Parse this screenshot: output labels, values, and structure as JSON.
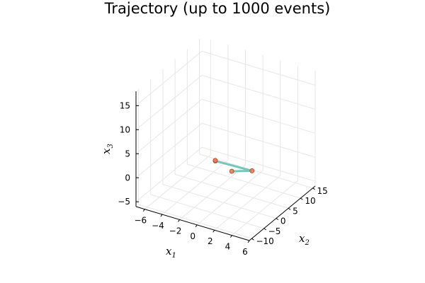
{
  "chart_data": {
    "type": "line3d",
    "title": "Trajectory (up to 1000 events)",
    "xlabel": "x",
    "xlabel_sub": "1",
    "ylabel": "x",
    "ylabel_sub": "2",
    "zlabel": "x",
    "zlabel_sub": "3",
    "xlim": [
      -7,
      6
    ],
    "ylim": [
      -11,
      16
    ],
    "zlim": [
      -6,
      18
    ],
    "xticks": [
      -6,
      -4,
      -2,
      0,
      2,
      4,
      6
    ],
    "yticks": [
      -10,
      -5,
      0,
      5,
      10,
      15
    ],
    "zticks": [
      -5,
      0,
      5,
      10,
      15
    ],
    "grid": true,
    "legend": "none",
    "series": [
      {
        "line_color": "#76c7b8",
        "marker_color": "#e0805f",
        "marker_edge": "#c0391b",
        "points": [
          {
            "x": 0.4,
            "y": 1.8,
            "z": 0.0
          },
          {
            "x": 2.5,
            "y": 2.6,
            "z": 0.9
          },
          {
            "x": -1.6,
            "y": 2.2,
            "z": 0.9
          },
          {
            "x": -1.6,
            "y": 2.2,
            "z": 1.0
          }
        ]
      }
    ]
  }
}
